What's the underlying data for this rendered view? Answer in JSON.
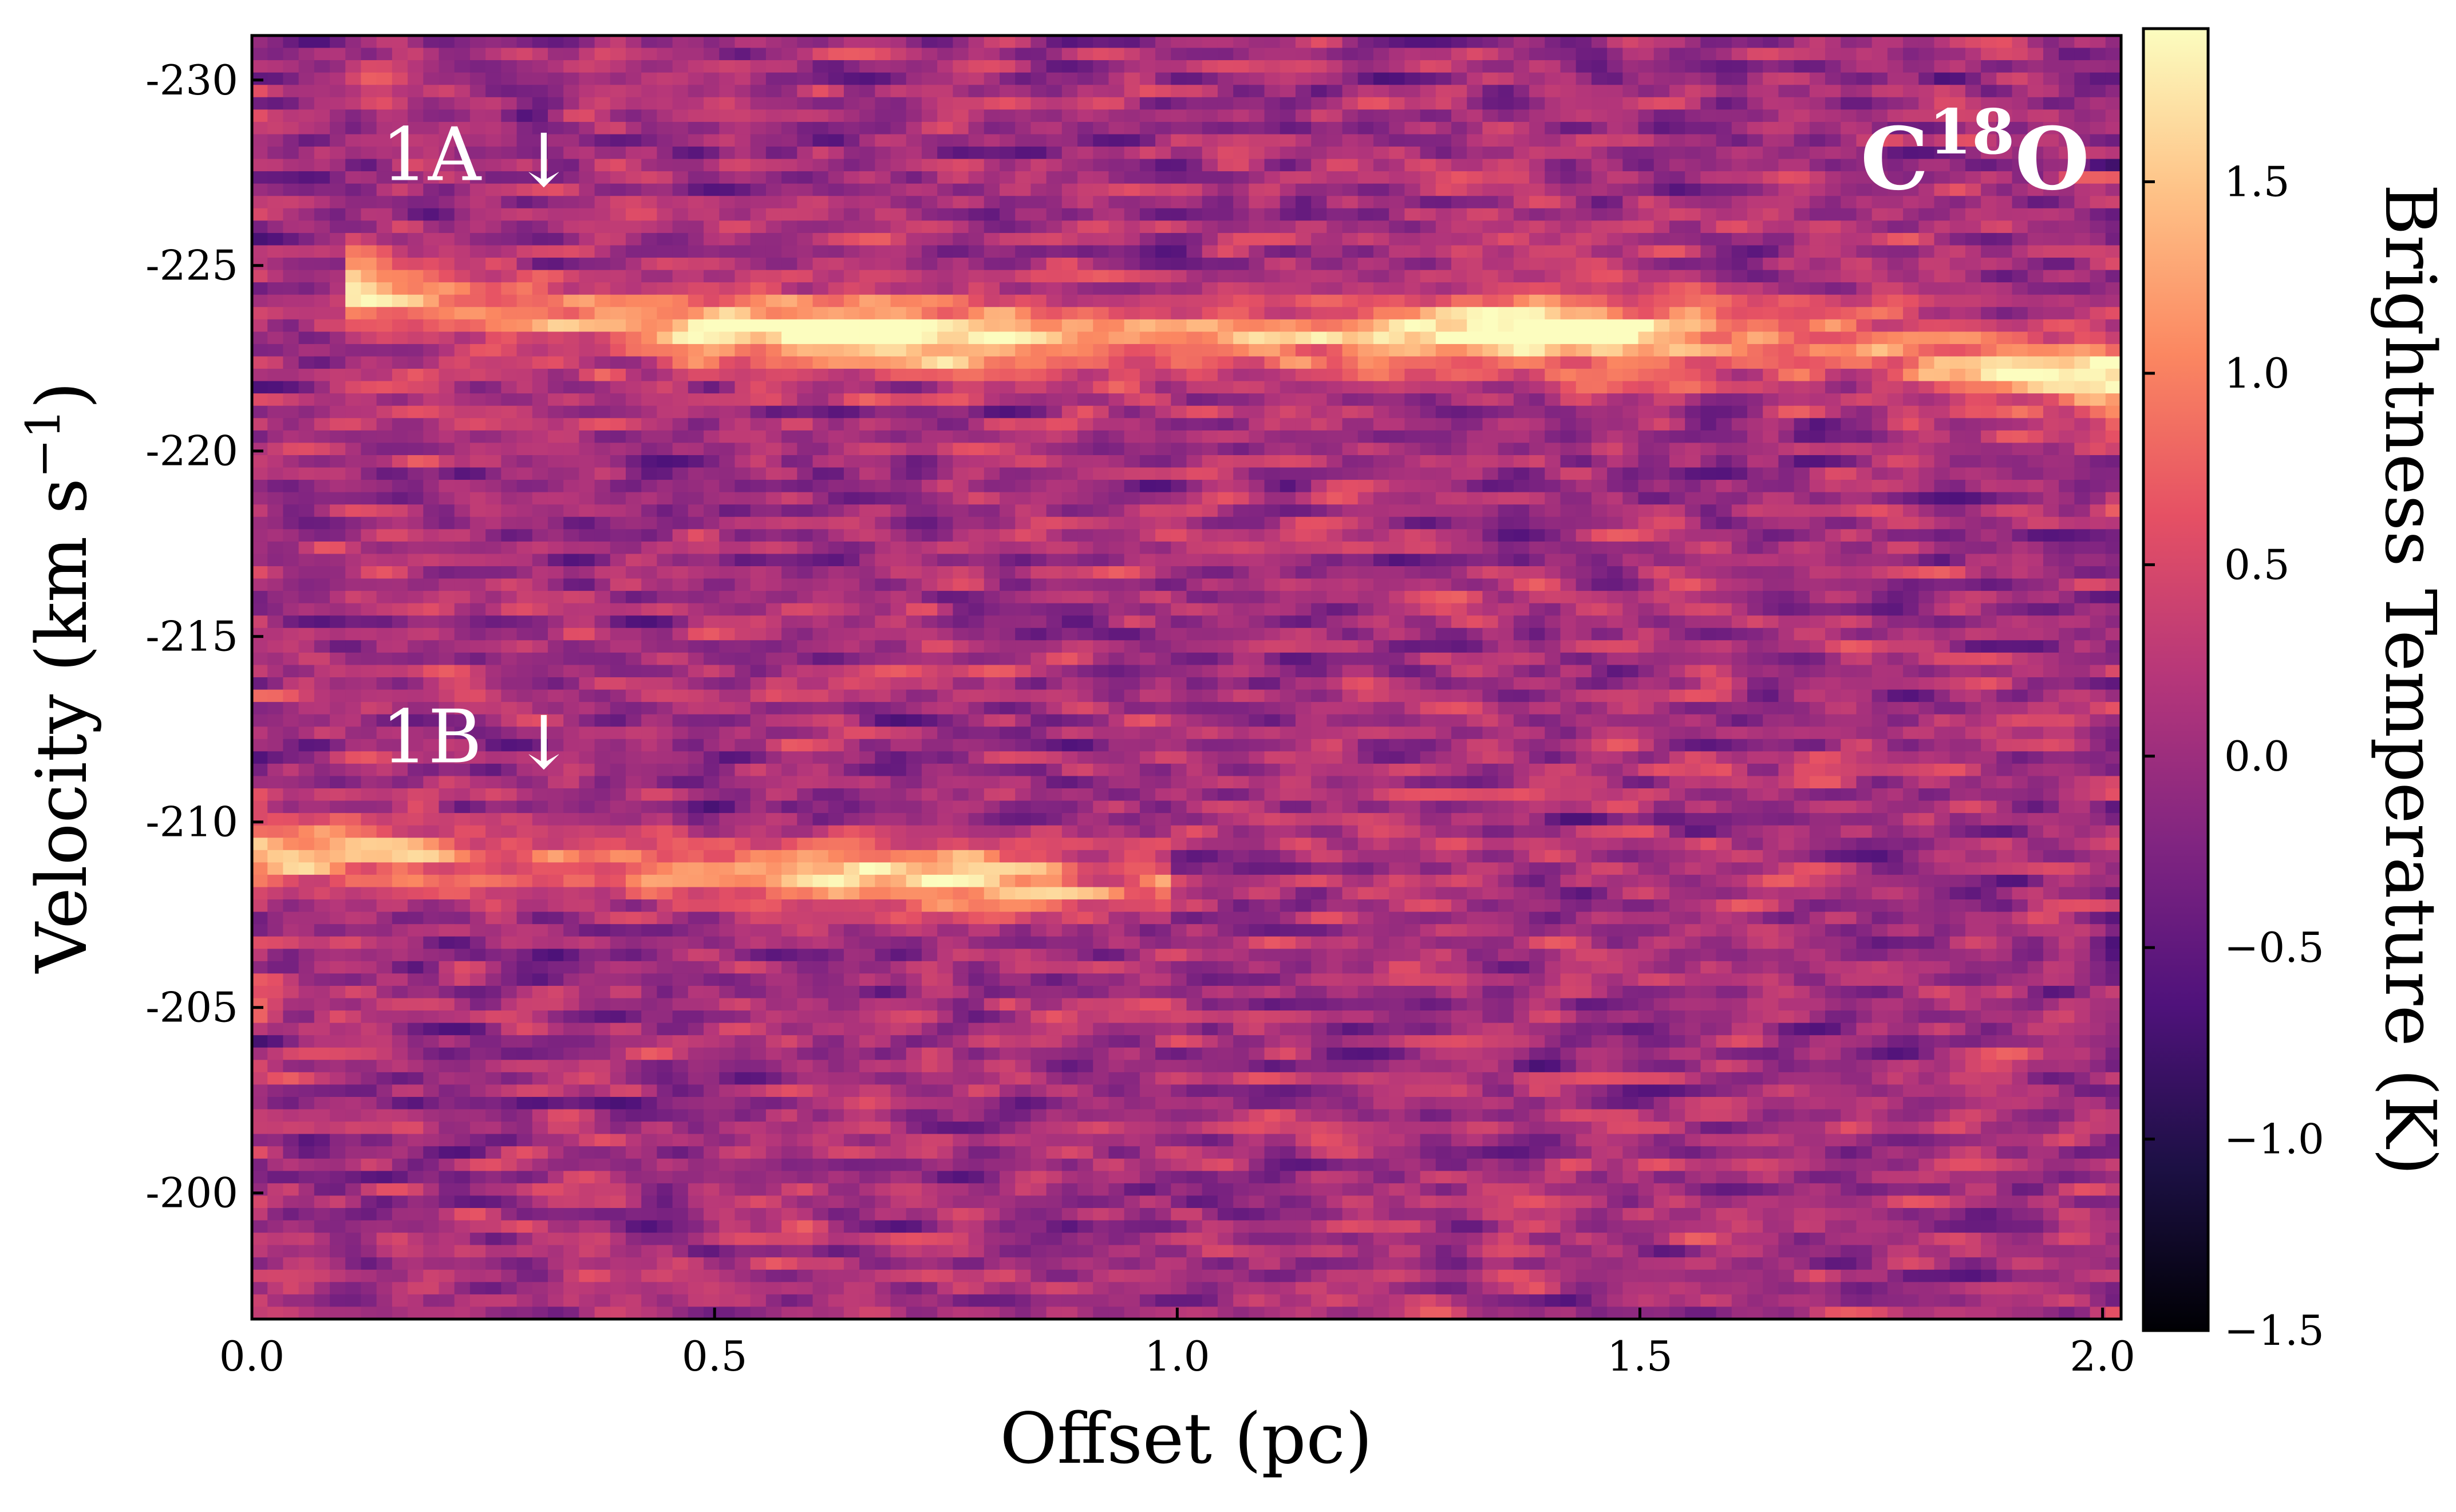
{
  "chart_data": {
    "type": "heatmap",
    "title": "",
    "species_label": {
      "base": "C",
      "superscript": "18",
      "tail": "O"
    },
    "xlabel": "Offset (pc)",
    "ylabel": "Velocity (km s",
    "ylabel_superscript": "−1",
    "ylabel_close": ")",
    "xlim": [
      0.0,
      2.02
    ],
    "ylim": [
      -196.6,
      -231.2
    ],
    "x_ticks": [
      {
        "value": 0.0,
        "label": "0.0"
      },
      {
        "value": 0.5,
        "label": "0.5"
      },
      {
        "value": 1.0,
        "label": "1.0"
      },
      {
        "value": 1.5,
        "label": "1.5"
      },
      {
        "value": 2.0,
        "label": "2.0"
      }
    ],
    "y_ticks": [
      {
        "value": -230,
        "label": "-230"
      },
      {
        "value": -225,
        "label": "-225"
      },
      {
        "value": -220,
        "label": "-220"
      },
      {
        "value": -215,
        "label": "-215"
      },
      {
        "value": -210,
        "label": "-210"
      },
      {
        "value": -205,
        "label": "-205"
      },
      {
        "value": -200,
        "label": "-200"
      }
    ],
    "colorbar": {
      "label": "Brightness Temperature (K)",
      "colormap": "magma",
      "range": [
        -1.5,
        1.9
      ],
      "ticks": [
        {
          "value": 1.5,
          "label": "1.5"
        },
        {
          "value": 1.0,
          "label": "1.0"
        },
        {
          "value": 0.5,
          "label": "0.5"
        },
        {
          "value": 0.0,
          "label": "0.0"
        },
        {
          "value": -0.5,
          "label": "−0.5"
        },
        {
          "value": -1.0,
          "label": "−1.0"
        },
        {
          "value": -1.5,
          "label": "−1.5"
        }
      ]
    },
    "grid": {
      "n_offset": 120,
      "n_velocity": 104,
      "noise_amplitude_K": 0.55,
      "background_K": 0.05
    },
    "features": [
      {
        "name": "1A",
        "label": "1A",
        "arrow": "↓",
        "label_offset_pc": 0.14,
        "label_velocity": -228.0,
        "ridge": [
          [
            0.1,
            -224.6
          ],
          [
            0.4,
            -223.4
          ],
          [
            0.7,
            -223.1
          ],
          [
            1.0,
            -223.0
          ],
          [
            1.3,
            -223.2
          ],
          [
            1.6,
            -223.1
          ],
          [
            1.9,
            -222.3
          ],
          [
            2.02,
            -222.0
          ]
        ],
        "peak_K": 1.9,
        "width_kms": 0.7
      },
      {
        "name": "1B",
        "label": "1B",
        "arrow": "↓",
        "label_offset_pc": 0.14,
        "label_velocity": -212.3,
        "ridge": [
          [
            0.0,
            -209.4
          ],
          [
            0.2,
            -209.0
          ],
          [
            0.4,
            -208.7
          ],
          [
            0.6,
            -208.6
          ],
          [
            0.8,
            -208.4
          ],
          [
            1.0,
            -208.3
          ]
        ],
        "peak_K": 1.6,
        "width_kms": 0.6
      }
    ]
  }
}
